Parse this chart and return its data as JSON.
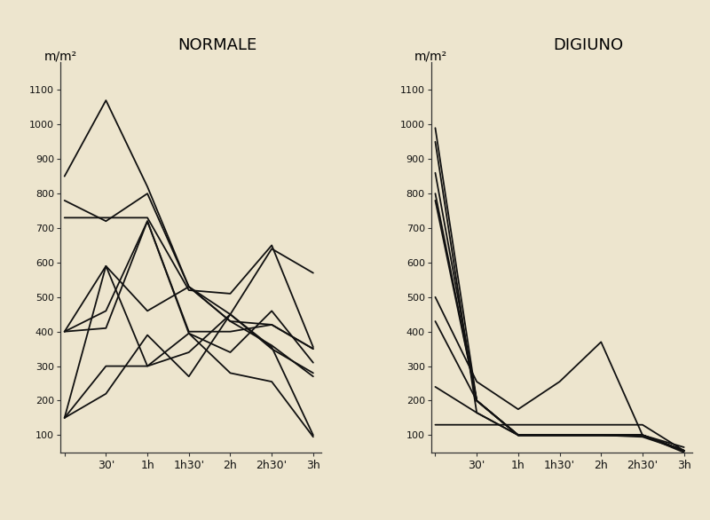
{
  "background_color": "#e8dfc8",
  "title_normale": "NORMALE",
  "title_digiuno": "DIGIUNO",
  "ylabel": "m/m²",
  "xtick_labels": [
    "",
    "30'",
    "1h",
    "1h30'",
    "2h",
    "2h30'",
    "3h"
  ],
  "yticks": [
    100,
    200,
    300,
    400,
    500,
    600,
    700,
    800,
    900,
    1000,
    1100
  ],
  "ylim": [
    50,
    1180
  ],
  "normale_lines": [
    [
      850,
      1070,
      820,
      530,
      430,
      360,
      270
    ],
    [
      730,
      730,
      730,
      520,
      510,
      650,
      355
    ],
    [
      780,
      720,
      800,
      530,
      450,
      640,
      570
    ],
    [
      400,
      590,
      460,
      530,
      430,
      420,
      350
    ],
    [
      400,
      460,
      720,
      400,
      400,
      420,
      350
    ],
    [
      150,
      590,
      300,
      395,
      340,
      460,
      310
    ],
    [
      150,
      220,
      390,
      270,
      450,
      350,
      280
    ],
    [
      150,
      300,
      300,
      340,
      450,
      355,
      100
    ],
    [
      400,
      410,
      720,
      395,
      280,
      255,
      95
    ]
  ],
  "digiuno_lines": [
    [
      990,
      200,
      100,
      100,
      100,
      100,
      65
    ],
    [
      950,
      165,
      100,
      100,
      100,
      100,
      55
    ],
    [
      860,
      200,
      100,
      100,
      100,
      95,
      55
    ],
    [
      800,
      200,
      100,
      100,
      100,
      100,
      55
    ],
    [
      780,
      200,
      100,
      100,
      100,
      100,
      50
    ],
    [
      500,
      255,
      175,
      255,
      370,
      100,
      55
    ],
    [
      430,
      200,
      100,
      100,
      100,
      100,
      55
    ],
    [
      240,
      165,
      100,
      100,
      100,
      100,
      55
    ],
    [
      130,
      130,
      130,
      130,
      130,
      130,
      55
    ]
  ],
  "line_color": "#111111",
  "line_width": 1.3,
  "axes_color": "#333333",
  "paper_color": "#ede5ce"
}
